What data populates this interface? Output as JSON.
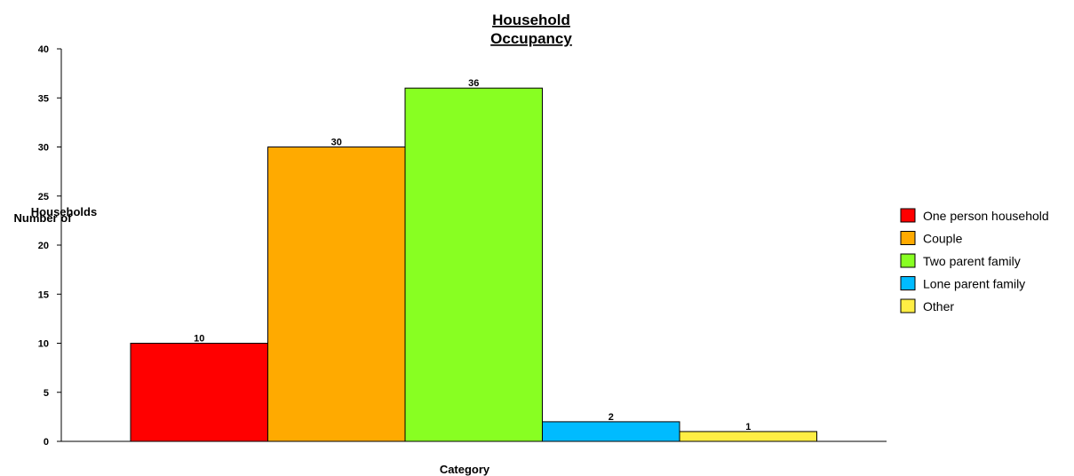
{
  "chart_data": {
    "type": "bar",
    "title": [
      "Household",
      "Occupancy"
    ],
    "xlabel": "Category",
    "ylabel": [
      "Number of",
      "Households"
    ],
    "ylim": [
      0,
      40
    ],
    "yticks": [
      0,
      5,
      10,
      15,
      20,
      25,
      30,
      35,
      40
    ],
    "categories": [
      "One person household",
      "Couple",
      "Two parent family",
      "Lone parent family",
      "Other"
    ],
    "values": [
      10,
      30,
      36,
      2,
      1
    ],
    "colors": [
      "#ff0000",
      "#ffaa00",
      "#88ff22",
      "#00bbff",
      "#ffee44"
    ],
    "grid": false,
    "legend_position": "right"
  }
}
